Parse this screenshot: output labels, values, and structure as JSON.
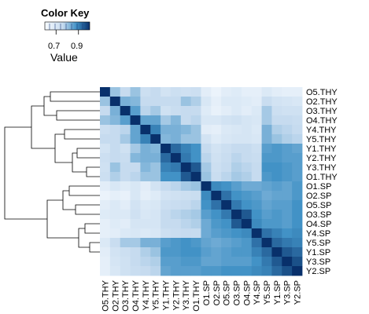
{
  "chart_data": {
    "type": "heatmap",
    "title": "",
    "color_key": {
      "title": "Color Key",
      "label": "Value",
      "ticks": [
        "0.7",
        "0.9"
      ],
      "tick_values": [
        0.7,
        0.9
      ],
      "range": [
        0.6,
        1.0
      ],
      "low_color": "#f7fbff",
      "high_color": "#08306b"
    },
    "rows": [
      "O5.THY",
      "O2.THY",
      "O3.THY",
      "O4.THY",
      "Y4.THY",
      "Y5.THY",
      "Y1.THY",
      "Y2.THY",
      "Y3.THY",
      "O1.THY",
      "O1.SP",
      "O2.SP",
      "O5.SP",
      "O3.SP",
      "O4.SP",
      "Y4.SP",
      "Y5.SP",
      "Y1.SP",
      "Y3.SP",
      "Y2.SP"
    ],
    "columns": [
      "O5.THY",
      "O2.THY",
      "O3.THY",
      "O4.THY",
      "Y4.THY",
      "Y5.THY",
      "Y1.THY",
      "Y2.THY",
      "Y3.THY",
      "O1.THY",
      "O1.SP",
      "O2.SP",
      "O5.SP",
      "O3.SP",
      "O4.SP",
      "Y4.SP",
      "Y5.SP",
      "Y1.SP",
      "Y3.SP",
      "Y2.SP"
    ],
    "values": [
      [
        1.0,
        0.8,
        0.76,
        0.8,
        0.74,
        0.76,
        0.72,
        0.74,
        0.73,
        0.74,
        0.67,
        0.64,
        0.67,
        0.68,
        0.66,
        0.66,
        0.69,
        0.67,
        0.66,
        0.66
      ],
      [
        0.8,
        1.0,
        0.83,
        0.82,
        0.76,
        0.76,
        0.76,
        0.76,
        0.8,
        0.78,
        0.7,
        0.66,
        0.69,
        0.69,
        0.68,
        0.67,
        0.75,
        0.72,
        0.71,
        0.7
      ],
      [
        0.76,
        0.83,
        1.0,
        0.86,
        0.77,
        0.79,
        0.73,
        0.75,
        0.76,
        0.76,
        0.68,
        0.65,
        0.67,
        0.69,
        0.67,
        0.69,
        0.79,
        0.74,
        0.73,
        0.73
      ],
      [
        0.8,
        0.82,
        0.86,
        1.0,
        0.85,
        0.85,
        0.79,
        0.82,
        0.76,
        0.77,
        0.7,
        0.7,
        0.72,
        0.73,
        0.71,
        0.7,
        0.79,
        0.76,
        0.76,
        0.75
      ],
      [
        0.74,
        0.76,
        0.77,
        0.85,
        1.0,
        0.9,
        0.83,
        0.83,
        0.82,
        0.8,
        0.67,
        0.66,
        0.69,
        0.7,
        0.71,
        0.69,
        0.83,
        0.78,
        0.77,
        0.76
      ],
      [
        0.76,
        0.76,
        0.79,
        0.85,
        0.9,
        1.0,
        0.82,
        0.83,
        0.8,
        0.8,
        0.72,
        0.68,
        0.7,
        0.71,
        0.71,
        0.7,
        0.83,
        0.8,
        0.78,
        0.77
      ],
      [
        0.72,
        0.76,
        0.73,
        0.79,
        0.83,
        0.82,
        1.0,
        0.93,
        0.9,
        0.88,
        0.76,
        0.72,
        0.74,
        0.76,
        0.76,
        0.74,
        0.86,
        0.87,
        0.86,
        0.85
      ],
      [
        0.74,
        0.76,
        0.75,
        0.82,
        0.83,
        0.83,
        0.93,
        1.0,
        0.91,
        0.88,
        0.77,
        0.73,
        0.75,
        0.77,
        0.76,
        0.75,
        0.87,
        0.87,
        0.86,
        0.86
      ],
      [
        0.73,
        0.8,
        0.76,
        0.76,
        0.82,
        0.8,
        0.9,
        0.91,
        1.0,
        0.95,
        0.79,
        0.74,
        0.76,
        0.78,
        0.77,
        0.76,
        0.88,
        0.88,
        0.87,
        0.86
      ],
      [
        0.74,
        0.78,
        0.76,
        0.77,
        0.8,
        0.8,
        0.88,
        0.88,
        0.95,
        1.0,
        0.8,
        0.75,
        0.77,
        0.79,
        0.78,
        0.76,
        0.87,
        0.88,
        0.87,
        0.86
      ],
      [
        0.67,
        0.7,
        0.68,
        0.7,
        0.67,
        0.72,
        0.76,
        0.77,
        0.79,
        0.8,
        1.0,
        0.89,
        0.88,
        0.86,
        0.84,
        0.84,
        0.85,
        0.86,
        0.85,
        0.87
      ],
      [
        0.64,
        0.66,
        0.65,
        0.7,
        0.66,
        0.68,
        0.72,
        0.73,
        0.74,
        0.75,
        0.89,
        1.0,
        0.92,
        0.88,
        0.87,
        0.86,
        0.84,
        0.85,
        0.85,
        0.87
      ],
      [
        0.67,
        0.69,
        0.67,
        0.72,
        0.69,
        0.7,
        0.74,
        0.75,
        0.76,
        0.77,
        0.88,
        0.92,
        1.0,
        0.91,
        0.88,
        0.87,
        0.85,
        0.86,
        0.86,
        0.88
      ],
      [
        0.68,
        0.69,
        0.69,
        0.73,
        0.7,
        0.71,
        0.76,
        0.77,
        0.78,
        0.79,
        0.86,
        0.88,
        0.91,
        1.0,
        0.95,
        0.88,
        0.86,
        0.87,
        0.86,
        0.88
      ],
      [
        0.66,
        0.68,
        0.67,
        0.71,
        0.71,
        0.71,
        0.76,
        0.76,
        0.77,
        0.78,
        0.84,
        0.87,
        0.88,
        0.95,
        1.0,
        0.89,
        0.87,
        0.87,
        0.86,
        0.88
      ],
      [
        0.66,
        0.67,
        0.69,
        0.7,
        0.69,
        0.7,
        0.74,
        0.75,
        0.76,
        0.76,
        0.84,
        0.86,
        0.87,
        0.88,
        0.89,
        1.0,
        0.92,
        0.9,
        0.88,
        0.89
      ],
      [
        0.69,
        0.75,
        0.79,
        0.79,
        0.83,
        0.83,
        0.86,
        0.87,
        0.88,
        0.87,
        0.85,
        0.84,
        0.85,
        0.86,
        0.87,
        0.92,
        1.0,
        0.93,
        0.91,
        0.9
      ],
      [
        0.67,
        0.72,
        0.74,
        0.76,
        0.78,
        0.8,
        0.87,
        0.87,
        0.88,
        0.88,
        0.86,
        0.85,
        0.86,
        0.87,
        0.87,
        0.9,
        0.93,
        1.0,
        0.95,
        0.93
      ],
      [
        0.66,
        0.71,
        0.73,
        0.76,
        0.77,
        0.78,
        0.86,
        0.86,
        0.87,
        0.87,
        0.85,
        0.85,
        0.86,
        0.86,
        0.86,
        0.88,
        0.91,
        0.95,
        1.0,
        0.96
      ],
      [
        0.66,
        0.7,
        0.73,
        0.75,
        0.76,
        0.77,
        0.85,
        0.86,
        0.86,
        0.86,
        0.87,
        0.87,
        0.88,
        0.88,
        0.88,
        0.89,
        0.9,
        0.93,
        0.96,
        1.0
      ]
    ]
  }
}
